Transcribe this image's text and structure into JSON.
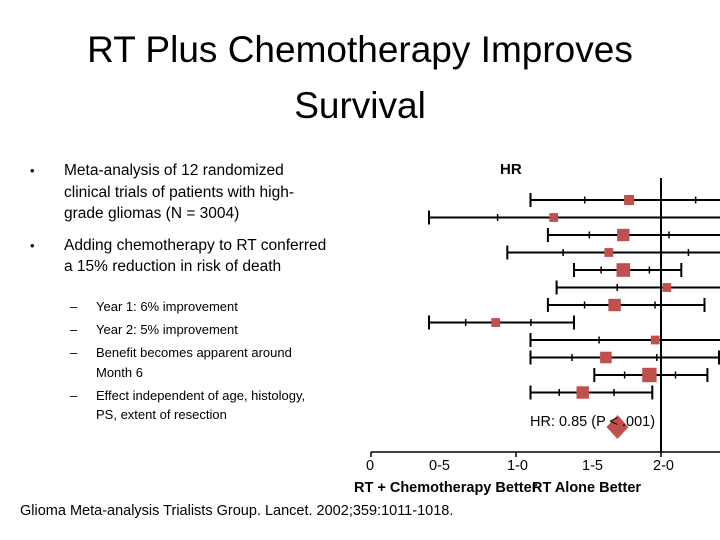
{
  "slide": {
    "title": "RT Plus Chemotherapy Improves Survival",
    "bullets": [
      {
        "text": "Meta-analysis of 12 randomized clinical trials of patients with high-grade gliomas (N = 3004)"
      },
      {
        "text": "Adding chemotherapy to RT conferred a 15% reduction in risk of death"
      }
    ],
    "bullet_marker": "•",
    "dash_marker": "–",
    "sub_bullets": [
      {
        "text": "Year 1: 6% improvement"
      },
      {
        "text": "Year 2: 5% improvement"
      },
      {
        "text": "Benefit becomes apparent around Month 6"
      },
      {
        "text": "Effect independent of age, histology, PS, extent of resection"
      }
    ],
    "citation": "Glioma Meta-analysis Trialists Group. Lancet. 2002;359:1011-1018."
  },
  "forest_plot": {
    "column_label": "HR",
    "summary_text": "HR: 0.85 (P < .001)",
    "x_ticks": [
      "0",
      "0-5",
      "1-0",
      "1-5",
      "2-0"
    ],
    "x_tick_values": [
      0,
      0.5,
      1.0,
      1.5,
      2.0
    ],
    "left_caption": "RT + Chemotherapy Better",
    "right_caption": "RT Alone Better",
    "reference_value": 1.0,
    "summary": {
      "hr": 0.85
    },
    "marker_color": "#c0504d",
    "trials": [
      {
        "hr": 0.89,
        "lo": 0.55,
        "hi": 1.4,
        "weight": 1.0
      },
      {
        "hr": 0.63,
        "lo": 0.2,
        "hi": 1.98,
        "weight": 0.7
      },
      {
        "hr": 0.87,
        "lo": 0.61,
        "hi": 1.22,
        "weight": 1.6
      },
      {
        "hr": 0.82,
        "lo": 0.47,
        "hi": 1.43,
        "weight": 0.7
      },
      {
        "hr": 0.87,
        "lo": 0.7,
        "hi": 1.07,
        "weight": 1.9
      },
      {
        "hr": 1.02,
        "lo": 0.64,
        "hi": 1.8,
        "weight": 0.7
      },
      {
        "hr": 0.84,
        "lo": 0.61,
        "hi": 1.15,
        "weight": 1.6
      },
      {
        "hr": 0.43,
        "lo": 0.2,
        "hi": 0.7,
        "weight": 0.7
      },
      {
        "hr": 0.98,
        "lo": 0.55,
        "hi": 1.75,
        "weight": 0.7
      },
      {
        "hr": 0.81,
        "lo": 0.55,
        "hi": 1.2,
        "weight": 1.4
      },
      {
        "hr": 0.96,
        "lo": 0.77,
        "hi": 1.16,
        "weight": 2.1
      },
      {
        "hr": 0.73,
        "lo": 0.55,
        "hi": 0.97,
        "weight": 1.6
      }
    ]
  }
}
